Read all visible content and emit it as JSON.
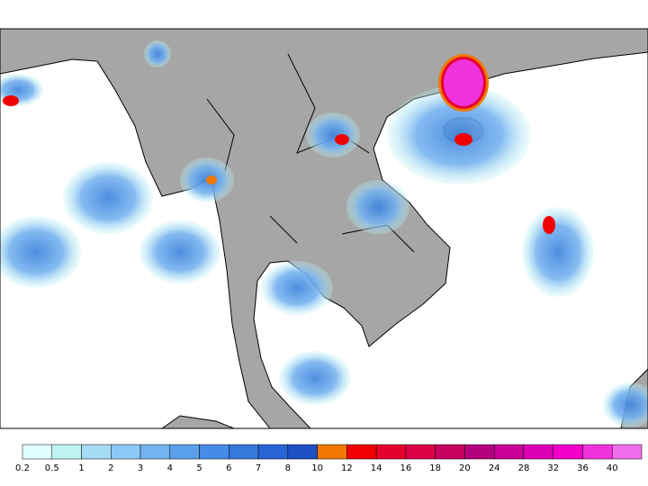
{
  "colorbar": {
    "labels": [
      0.2,
      0.5,
      1,
      2,
      3,
      4,
      5,
      6,
      7,
      8,
      10,
      12,
      14,
      16,
      18,
      20,
      24,
      28,
      32,
      36,
      40
    ],
    "colors": [
      "#e1fffe",
      "#bff3f3",
      "#a5dcf5",
      "#8cc8f5",
      "#73b4f0",
      "#5aa0eb",
      "#468ce6",
      "#3778dc",
      "#2864d2",
      "#1e50c3",
      "#f07800",
      "#f00000",
      "#e6002d",
      "#dc0046",
      "#c8005f",
      "#b4007d",
      "#c80096",
      "#dc00b4",
      "#f000c8",
      "#f032dc",
      "#f06eeb"
    ]
  }
}
